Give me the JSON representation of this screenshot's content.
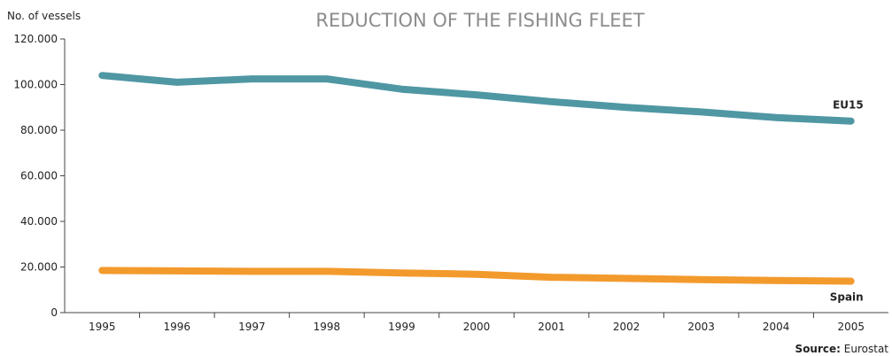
{
  "chart_data": {
    "type": "line",
    "title": "REDUCTION OF THE FISHING FLEET",
    "ylabel": "No. of vessels",
    "xlabel": "",
    "x": [
      "1995",
      "1996",
      "1997",
      "1998",
      "1999",
      "2000",
      "2001",
      "2002",
      "2003",
      "2004",
      "2005"
    ],
    "ylim": [
      0,
      120000
    ],
    "yticks": [
      0,
      20000,
      40000,
      60000,
      80000,
      100000,
      120000
    ],
    "ytick_labels": [
      "0",
      "20.000",
      "40.000",
      "60.000",
      "80.000",
      "100.000",
      "120.000"
    ],
    "grid": false,
    "series": [
      {
        "name": "EU15",
        "color": "#4f97a3",
        "values": [
          104000,
          101000,
          102500,
          102500,
          98000,
          95500,
          92500,
          90000,
          88000,
          85500,
          84000
        ]
      },
      {
        "name": "Spain",
        "color": "#f39a2d",
        "values": [
          18500,
          18300,
          18100,
          18100,
          17400,
          16800,
          15500,
          15000,
          14500,
          14100,
          13800
        ]
      }
    ],
    "source_label": "Source:",
    "source_value": "Eurostat"
  }
}
